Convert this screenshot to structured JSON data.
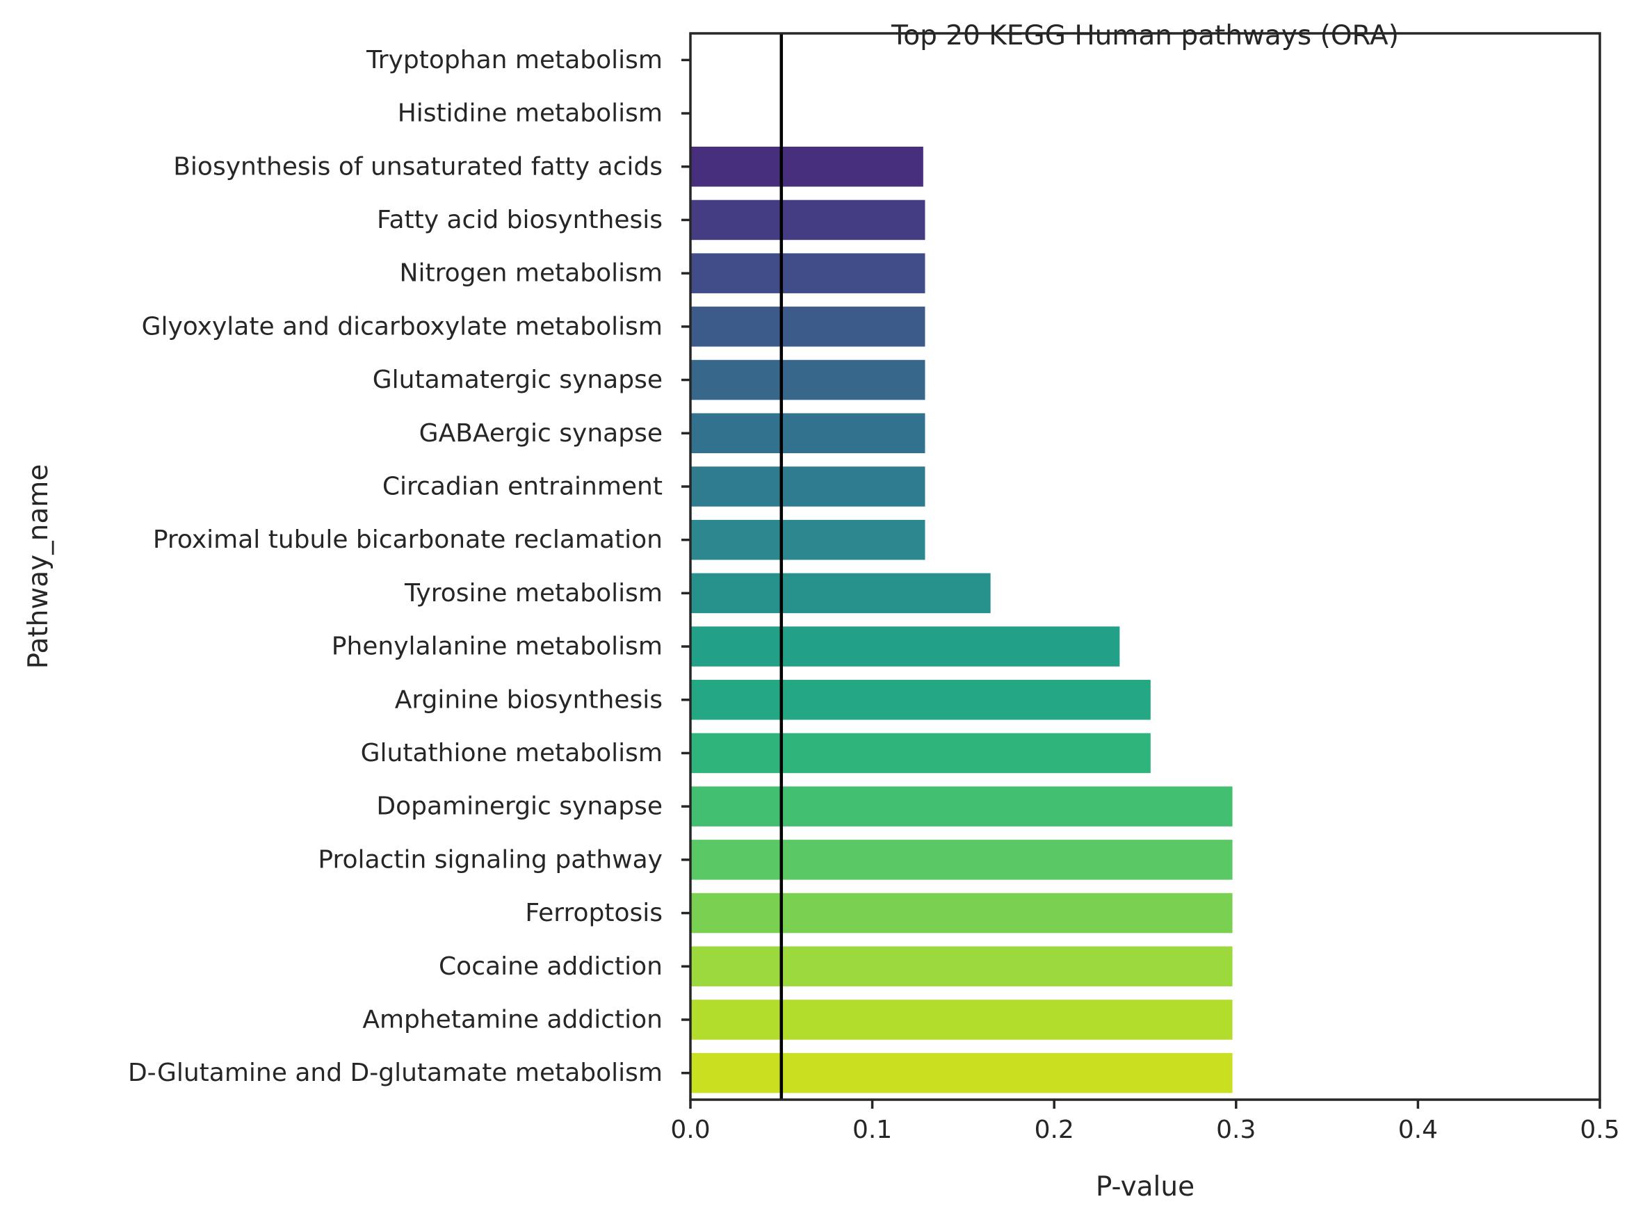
{
  "chart_data": {
    "type": "bar",
    "orientation": "horizontal",
    "title": "Top 20 KEGG Human pathways (ORA)",
    "xlabel": "P-value",
    "ylabel": "Pathway_name",
    "xlim": [
      0,
      0.5
    ],
    "xticks": [
      "0.0",
      "0.1",
      "0.2",
      "0.3",
      "0.4",
      "0.5"
    ],
    "reference_line": {
      "x": 0.05,
      "color": "#000000"
    },
    "grid": false,
    "palette": "viridis",
    "categories": [
      "Tryptophan metabolism",
      "Histidine metabolism",
      "Biosynthesis of unsaturated fatty acids",
      "Fatty acid biosynthesis",
      "Nitrogen metabolism",
      "Glyoxylate and dicarboxylate metabolism",
      "Glutamatergic synapse",
      "GABAergic synapse",
      "Circadian entrainment",
      "Proximal tubule bicarbonate reclamation",
      "Tyrosine metabolism",
      "Phenylalanine metabolism",
      "Arginine biosynthesis",
      "Glutathione metabolism",
      "Dopaminergic synapse",
      "Prolactin signaling pathway",
      "Ferroptosis",
      "Cocaine addiction",
      "Amphetamine addiction",
      "D-Glutamine and D-glutamate metabolism"
    ],
    "values": [
      0.0,
      0.0,
      0.128,
      0.129,
      0.129,
      0.129,
      0.129,
      0.129,
      0.129,
      0.129,
      0.165,
      0.236,
      0.253,
      0.253,
      0.298,
      0.298,
      0.298,
      0.298,
      0.298,
      0.298
    ],
    "colors": [
      "#440154",
      "#461c6a",
      "#472f7d",
      "#443d84",
      "#414d89",
      "#3c5b8b",
      "#38678c",
      "#33728e",
      "#2f7c8e",
      "#2c878e",
      "#27928c",
      "#22a088",
      "#24a884",
      "#2fb47c",
      "#43bf71",
      "#5ac864",
      "#7ad151",
      "#9bd93c",
      "#b2dd2c",
      "#c8e020"
    ]
  }
}
